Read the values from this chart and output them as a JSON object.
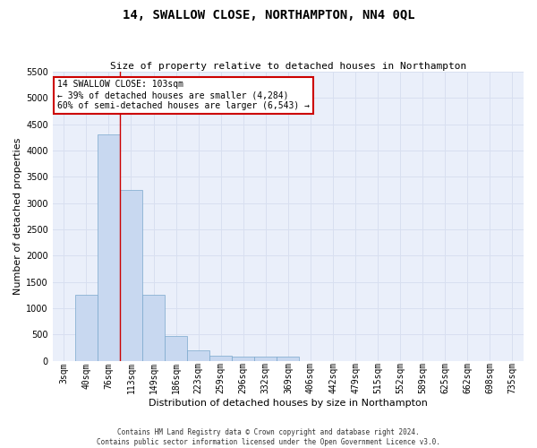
{
  "title": "14, SWALLOW CLOSE, NORTHAMPTON, NN4 0QL",
  "subtitle": "Size of property relative to detached houses in Northampton",
  "xlabel": "Distribution of detached houses by size in Northampton",
  "ylabel": "Number of detached properties",
  "categories": [
    "3sqm",
    "40sqm",
    "76sqm",
    "113sqm",
    "149sqm",
    "186sqm",
    "223sqm",
    "259sqm",
    "296sqm",
    "332sqm",
    "369sqm",
    "406sqm",
    "442sqm",
    "479sqm",
    "515sqm",
    "552sqm",
    "589sqm",
    "625sqm",
    "662sqm",
    "698sqm",
    "735sqm"
  ],
  "values": [
    0,
    1250,
    4300,
    3250,
    1250,
    475,
    200,
    100,
    75,
    75,
    75,
    0,
    0,
    0,
    0,
    0,
    0,
    0,
    0,
    0,
    0
  ],
  "bar_color": "#c8d8f0",
  "bar_edge_color": "#7aa8cc",
  "property_line_bin": 2.5,
  "annotation_text_line1": "14 SWALLOW CLOSE: 103sqm",
  "annotation_text_line2": "← 39% of detached houses are smaller (4,284)",
  "annotation_text_line3": "60% of semi-detached houses are larger (6,543) →",
  "ylim": [
    0,
    5500
  ],
  "yticks": [
    0,
    500,
    1000,
    1500,
    2000,
    2500,
    3000,
    3500,
    4000,
    4500,
    5000,
    5500
  ],
  "grid_color": "#d8dff0",
  "bg_color": "#eaeffa",
  "annotation_box_color": "#ffffff",
  "annotation_box_edge": "#cc0000",
  "line_color": "#cc0000",
  "footer1": "Contains HM Land Registry data © Crown copyright and database right 2024.",
  "footer2": "Contains public sector information licensed under the Open Government Licence v3.0.",
  "title_fontsize": 10,
  "subtitle_fontsize": 8,
  "ylabel_fontsize": 8,
  "xlabel_fontsize": 8,
  "ytick_fontsize": 7,
  "xtick_fontsize": 7,
  "annotation_fontsize": 7
}
